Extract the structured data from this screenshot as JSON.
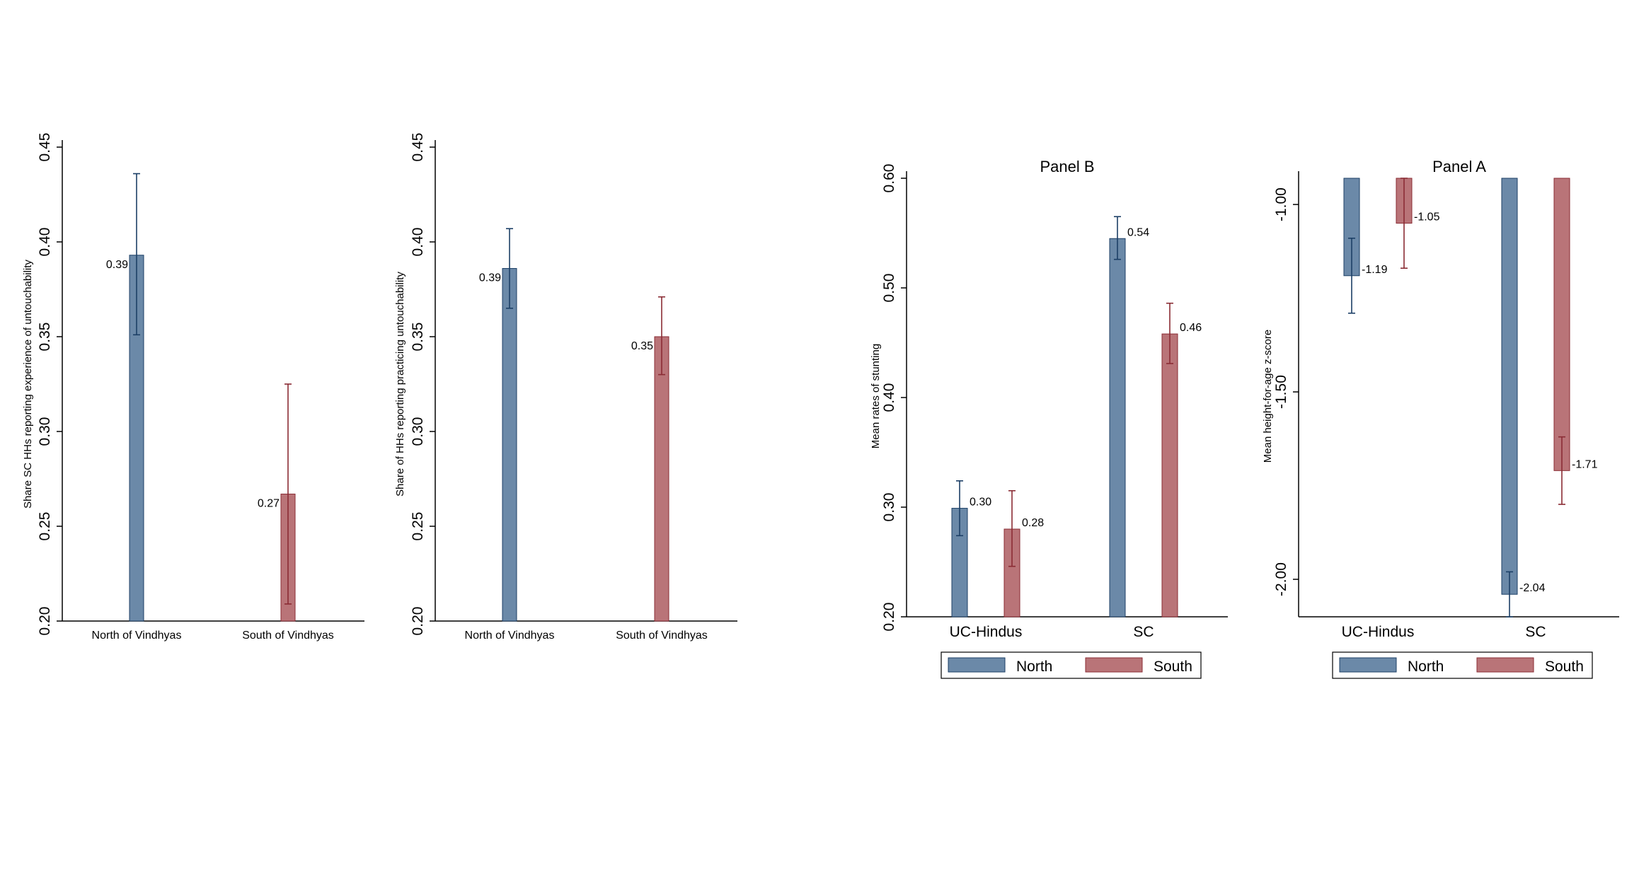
{
  "colors": {
    "north": "#6b89a8",
    "north_edge": "#1c3f66",
    "south": "#b97478",
    "south_edge": "#8a2c34",
    "axis": "#000000"
  },
  "chart_data": [
    {
      "type": "bar",
      "id": "chart1",
      "title": "",
      "xlabel": "",
      "ylabel": "Share SC HHs reporting experience of untouchability",
      "ylim": [
        0.2,
        0.45
      ],
      "yticks": [
        "0.20",
        "0.25",
        "0.30",
        "0.35",
        "0.40",
        "0.45"
      ],
      "categories": [
        "North of Vindhyas",
        "South of Vindhyas"
      ],
      "bars": [
        {
          "category": "North of Vindhyas",
          "group": "north",
          "value": 0.393,
          "ci_low": 0.351,
          "ci_high": 0.436,
          "label": "0.39",
          "label_side": "left"
        },
        {
          "category": "South of Vindhyas",
          "group": "south",
          "value": 0.267,
          "ci_low": 0.209,
          "ci_high": 0.325,
          "label": "0.27",
          "label_side": "left"
        }
      ]
    },
    {
      "type": "bar",
      "id": "chart2",
      "title": "",
      "xlabel": "",
      "ylabel": "Share of HHs reporting practicing untouchability",
      "ylim": [
        0.2,
        0.45
      ],
      "yticks": [
        "0.20",
        "0.25",
        "0.30",
        "0.35",
        "0.40",
        "0.45"
      ],
      "categories": [
        "North of Vindhyas",
        "South of Vindhyas"
      ],
      "bars": [
        {
          "category": "North of Vindhyas",
          "group": "north",
          "value": 0.386,
          "ci_low": 0.365,
          "ci_high": 0.407,
          "label": "0.39",
          "label_side": "left"
        },
        {
          "category": "South of Vindhyas",
          "group": "south",
          "value": 0.35,
          "ci_low": 0.33,
          "ci_high": 0.371,
          "label": "0.35",
          "label_side": "left"
        }
      ]
    },
    {
      "type": "bar",
      "id": "chart3",
      "title": "Panel B",
      "xlabel": "",
      "ylabel": "Mean rates of stunting",
      "ylim": [
        0.2,
        0.6
      ],
      "yticks": [
        "0.20",
        "0.30",
        "0.40",
        "0.50",
        "0.60"
      ],
      "categories": [
        "UC-Hindus",
        "SC"
      ],
      "legend": [
        "North",
        "South"
      ],
      "legend_position": "bottom",
      "bars": [
        {
          "category": "UC-Hindus",
          "group": "north",
          "value": 0.299,
          "ci_low": 0.274,
          "ci_high": 0.324,
          "label": "0.30",
          "label_side": "right"
        },
        {
          "category": "UC-Hindus",
          "group": "south",
          "value": 0.28,
          "ci_low": 0.246,
          "ci_high": 0.315,
          "label": "0.28",
          "label_side": "right"
        },
        {
          "category": "SC",
          "group": "north",
          "value": 0.545,
          "ci_low": 0.526,
          "ci_high": 0.565,
          "label": "0.54",
          "label_side": "right"
        },
        {
          "category": "SC",
          "group": "south",
          "value": 0.458,
          "ci_low": 0.431,
          "ci_high": 0.486,
          "label": "0.46",
          "label_side": "right"
        }
      ]
    },
    {
      "type": "bar",
      "id": "chart4",
      "title": "Panel A",
      "xlabel": "",
      "ylabel": "Mean height-for-age z-score",
      "ylim": [
        -2.1,
        -0.93
      ],
      "baseline": -0.93,
      "yticks": [
        "-2.00",
        "-1.50",
        "-1.00"
      ],
      "categories": [
        "UC-Hindus",
        "SC"
      ],
      "legend": [
        "North",
        "South"
      ],
      "legend_position": "bottom",
      "bars": [
        {
          "category": "UC-Hindus",
          "group": "north",
          "value": -1.19,
          "ci_low": -1.29,
          "ci_high": -1.09,
          "label": "-1.19",
          "label_side": "right"
        },
        {
          "category": "UC-Hindus",
          "group": "south",
          "value": -1.05,
          "ci_low": -1.17,
          "ci_high": -0.93,
          "label": "-1.05",
          "label_side": "right"
        },
        {
          "category": "SC",
          "group": "north",
          "value": -2.04,
          "ci_low": -2.1,
          "ci_high": -1.98,
          "label": "-2.04",
          "label_side": "right"
        },
        {
          "category": "SC",
          "group": "south",
          "value": -1.71,
          "ci_low": -1.8,
          "ci_high": -1.62,
          "label": "-1.71",
          "label_side": "right"
        }
      ]
    }
  ]
}
